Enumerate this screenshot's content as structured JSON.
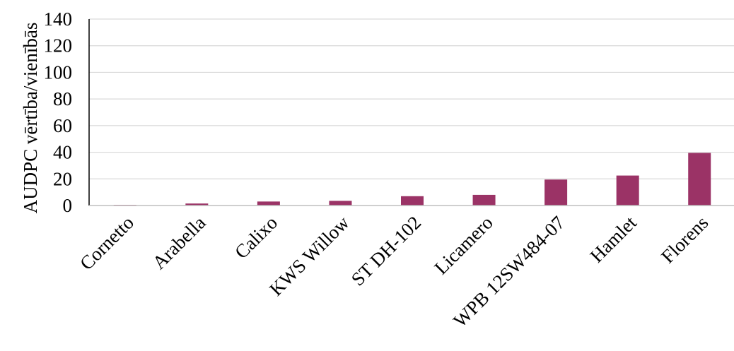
{
  "chart_data": {
    "type": "bar",
    "title": "",
    "xlabel": "",
    "ylabel": "AUDPC vērtība/vienībās",
    "categories": [
      "Cornetto",
      "Arabella",
      "Calixo",
      "KWS Willow",
      "ST DH-102",
      "Licamero",
      "WPB 12SW484-07",
      "Hamlet",
      "Florens"
    ],
    "values": [
      0.5,
      1.5,
      3,
      3.5,
      7,
      8,
      19.5,
      22.5,
      39.5
    ],
    "ylim": [
      0,
      140
    ],
    "yticks": [
      0,
      20,
      40,
      60,
      80,
      100,
      120,
      140
    ],
    "grid": true,
    "legend": "none",
    "bar_color": "#9b3366",
    "grid_color": "#d9d9d9"
  }
}
